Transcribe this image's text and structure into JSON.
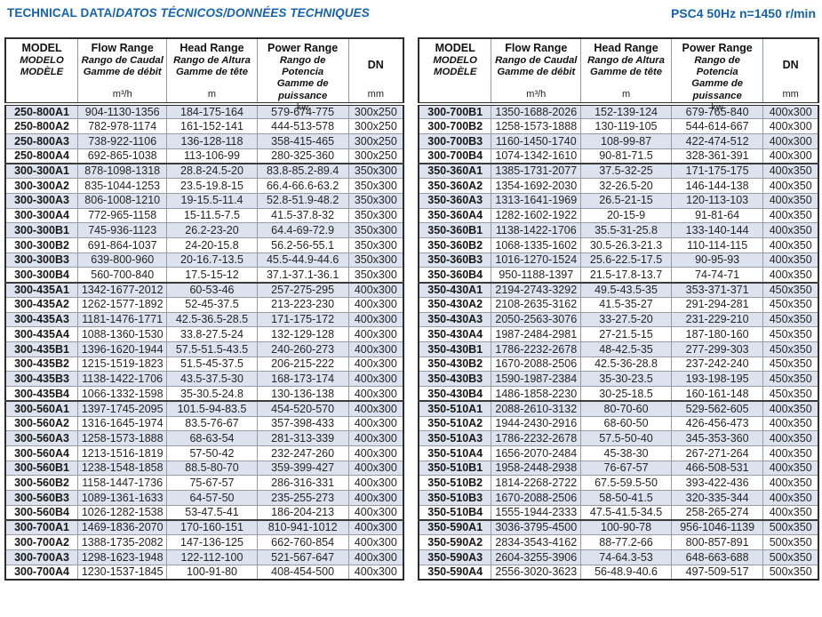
{
  "page": {
    "title": {
      "bold": "TECHNICAL DATA/",
      "italic": "DATOS TÉCNICOS/DONNÉES TECHNIQUES"
    },
    "spec": "PSC4 50Hz n=1450 r/min",
    "colors": {
      "accent": "#1463ac",
      "row_shade": "#dde3ee"
    }
  },
  "header": {
    "model_lines": [
      "MODEL",
      "MODELO",
      "MODÈLE"
    ],
    "flow_lines": [
      "Flow Range",
      "Rango de Caudal",
      "Gamme de débit"
    ],
    "head_lines": [
      "Head Range",
      "Rango de Altura",
      "Gamme de tête"
    ],
    "power_lines": [
      "Power Range",
      "Rango de Potencia",
      "Gamme de puissance"
    ],
    "dn_label": "DN",
    "units": {
      "flow": "m³/h",
      "head": "m",
      "power": "kw",
      "dn": "mm"
    }
  },
  "left_table": {
    "rows": [
      {
        "model": "250-800A1",
        "flow": "904-1130-1356",
        "head": "184-175-164",
        "power": "579-674-775",
        "dn": "300x250"
      },
      {
        "model": "250-800A2",
        "flow": "782-978-1174",
        "head": "161-152-141",
        "power": "444-513-578",
        "dn": "300x250"
      },
      {
        "model": "250-800A3",
        "flow": "738-922-1106",
        "head": "136-128-118",
        "power": "358-415-465",
        "dn": "300x250"
      },
      {
        "model": "250-800A4",
        "flow": "692-865-1038",
        "head": "113-106-99",
        "power": "280-325-360",
        "dn": "300x250"
      },
      {
        "model": "300-300A1",
        "flow": "878-1098-1318",
        "head": "28.8-24.5-20",
        "power": "83.8-85.2-89.4",
        "dn": "350x300"
      },
      {
        "model": "300-300A2",
        "flow": "835-1044-1253",
        "head": "23.5-19.8-15",
        "power": "66.4-66.6-63.2",
        "dn": "350x300"
      },
      {
        "model": "300-300A3",
        "flow": "806-1008-1210",
        "head": "19-15.5-11.4",
        "power": "52.8-51.9-48.2",
        "dn": "350x300"
      },
      {
        "model": "300-300A4",
        "flow": "772-965-1158",
        "head": "15-11.5-7.5",
        "power": "41.5-37.8-32",
        "dn": "350x300"
      },
      {
        "model": "300-300B1",
        "flow": "745-936-1123",
        "head": "26.2-23-20",
        "power": "64.4-69-72.9",
        "dn": "350x300"
      },
      {
        "model": "300-300B2",
        "flow": "691-864-1037",
        "head": "24-20-15.8",
        "power": "56.2-56-55.1",
        "dn": "350x300"
      },
      {
        "model": "300-300B3",
        "flow": "639-800-960",
        "head": "20-16.7-13.5",
        "power": "45.5-44.9-44.6",
        "dn": "350x300"
      },
      {
        "model": "300-300B4",
        "flow": "560-700-840",
        "head": "17.5-15-12",
        "power": "37.1-37.1-36.1",
        "dn": "350x300"
      },
      {
        "model": "300-435A1",
        "flow": "1342-1677-2012",
        "head": "60-53-46",
        "power": "257-275-295",
        "dn": "400x300"
      },
      {
        "model": "300-435A2",
        "flow": "1262-1577-1892",
        "head": "52-45-37.5",
        "power": "213-223-230",
        "dn": "400x300"
      },
      {
        "model": "300-435A3",
        "flow": "1181-1476-1771",
        "head": "42.5-36.5-28.5",
        "power": "171-175-172",
        "dn": "400x300"
      },
      {
        "model": "300-435A4",
        "flow": "1088-1360-1530",
        "head": "33.8-27.5-24",
        "power": "132-129-128",
        "dn": "400x300"
      },
      {
        "model": "300-435B1",
        "flow": "1396-1620-1944",
        "head": "57.5-51.5-43.5",
        "power": "240-260-273",
        "dn": "400x300"
      },
      {
        "model": "300-435B2",
        "flow": "1215-1519-1823",
        "head": "51.5-45-37.5",
        "power": "206-215-222",
        "dn": "400x300"
      },
      {
        "model": "300-435B3",
        "flow": "1138-1422-1706",
        "head": "43.5-37.5-30",
        "power": "168-173-174",
        "dn": "400x300"
      },
      {
        "model": "300-435B4",
        "flow": "1066-1332-1598",
        "head": "35-30.5-24.8",
        "power": "130-136-138",
        "dn": "400x300"
      },
      {
        "model": "300-560A1",
        "flow": "1397-1745-2095",
        "head": "101.5-94-83.5",
        "power": "454-520-570",
        "dn": "400x300"
      },
      {
        "model": "300-560A2",
        "flow": "1316-1645-1974",
        "head": "83.5-76-67",
        "power": "357-398-433",
        "dn": "400x300"
      },
      {
        "model": "300-560A3",
        "flow": "1258-1573-1888",
        "head": "68-63-54",
        "power": "281-313-339",
        "dn": "400x300"
      },
      {
        "model": "300-560A4",
        "flow": "1213-1516-1819",
        "head": "57-50-42",
        "power": "232-247-260",
        "dn": "400x300"
      },
      {
        "model": "300-560B1",
        "flow": "1238-1548-1858",
        "head": "88.5-80-70",
        "power": "359-399-427",
        "dn": "400x300"
      },
      {
        "model": "300-560B2",
        "flow": "1158-1447-1736",
        "head": "75-67-57",
        "power": "286-316-331",
        "dn": "400x300"
      },
      {
        "model": "300-560B3",
        "flow": "1089-1361-1633",
        "head": "64-57-50",
        "power": "235-255-273",
        "dn": "400x300"
      },
      {
        "model": "300-560B4",
        "flow": "1026-1282-1538",
        "head": "53-47.5-41",
        "power": "186-204-213",
        "dn": "400x300"
      },
      {
        "model": "300-700A1",
        "flow": "1469-1836-2070",
        "head": "170-160-151",
        "power": "810-941-1012",
        "dn": "400x300"
      },
      {
        "model": "300-700A2",
        "flow": "1388-1735-2082",
        "head": "147-136-125",
        "power": "662-760-854",
        "dn": "400x300"
      },
      {
        "model": "300-700A3",
        "flow": "1298-1623-1948",
        "head": "122-112-100",
        "power": "521-567-647",
        "dn": "400x300"
      },
      {
        "model": "300-700A4",
        "flow": "1230-1537-1845",
        "head": "100-91-80",
        "power": "408-454-500",
        "dn": "400x300"
      }
    ]
  },
  "right_table": {
    "rows": [
      {
        "model": "300-700B1",
        "flow": "1350-1688-2026",
        "head": "152-139-124",
        "power": "679-765-840",
        "dn": "400x300"
      },
      {
        "model": "300-700B2",
        "flow": "1258-1573-1888",
        "head": "130-119-105",
        "power": "544-614-667",
        "dn": "400x300"
      },
      {
        "model": "300-700B3",
        "flow": "1160-1450-1740",
        "head": "108-99-87",
        "power": "422-474-512",
        "dn": "400x300"
      },
      {
        "model": "300-700B4",
        "flow": "1074-1342-1610",
        "head": "90-81-71.5",
        "power": "328-361-391",
        "dn": "400x300"
      },
      {
        "model": "350-360A1",
        "flow": "1385-1731-2077",
        "head": "37.5-32-25",
        "power": "171-175-175",
        "dn": "400x350"
      },
      {
        "model": "350-360A2",
        "flow": "1354-1692-2030",
        "head": "32-26.5-20",
        "power": "146-144-138",
        "dn": "400x350"
      },
      {
        "model": "350-360A3",
        "flow": "1313-1641-1969",
        "head": "26.5-21-15",
        "power": "120-113-103",
        "dn": "400x350"
      },
      {
        "model": "350-360A4",
        "flow": "1282-1602-1922",
        "head": "20-15-9",
        "power": "91-81-64",
        "dn": "400x350"
      },
      {
        "model": "350-360B1",
        "flow": "1138-1422-1706",
        "head": "35.5-31-25.8",
        "power": "133-140-144",
        "dn": "400x350"
      },
      {
        "model": "350-360B2",
        "flow": "1068-1335-1602",
        "head": "30.5-26.3-21.3",
        "power": "110-114-115",
        "dn": "400x350"
      },
      {
        "model": "350-360B3",
        "flow": "1016-1270-1524",
        "head": "25.6-22.5-17.5",
        "power": "90-95-93",
        "dn": "400x350"
      },
      {
        "model": "350-360B4",
        "flow": "950-1188-1397",
        "head": "21.5-17.8-13.7",
        "power": "74-74-71",
        "dn": "400x350"
      },
      {
        "model": "350-430A1",
        "flow": "2194-2743-3292",
        "head": "49.5-43.5-35",
        "power": "353-371-371",
        "dn": "450x350"
      },
      {
        "model": "350-430A2",
        "flow": "2108-2635-3162",
        "head": "41.5-35-27",
        "power": "291-294-281",
        "dn": "450x350"
      },
      {
        "model": "350-430A3",
        "flow": "2050-2563-3076",
        "head": "33-27.5-20",
        "power": "231-229-210",
        "dn": "450x350"
      },
      {
        "model": "350-430A4",
        "flow": "1987-2484-2981",
        "head": "27-21.5-15",
        "power": "187-180-160",
        "dn": "450x350"
      },
      {
        "model": "350-430B1",
        "flow": "1786-2232-2678",
        "head": "48-42.5-35",
        "power": "277-299-303",
        "dn": "450x350"
      },
      {
        "model": "350-430B2",
        "flow": "1670-2088-2506",
        "head": "42.5-36-28.8",
        "power": "237-242-240",
        "dn": "450x350"
      },
      {
        "model": "350-430B3",
        "flow": "1590-1987-2384",
        "head": "35-30-23.5",
        "power": "193-198-195",
        "dn": "450x350"
      },
      {
        "model": "350-430B4",
        "flow": "1486-1858-2230",
        "head": "30-25-18.5",
        "power": "160-161-148",
        "dn": "450x350"
      },
      {
        "model": "350-510A1",
        "flow": "2088-2610-3132",
        "head": "80-70-60",
        "power": "529-562-605",
        "dn": "400x350"
      },
      {
        "model": "350-510A2",
        "flow": "1944-2430-2916",
        "head": "68-60-50",
        "power": "426-456-473",
        "dn": "400x350"
      },
      {
        "model": "350-510A3",
        "flow": "1786-2232-2678",
        "head": "57.5-50-40",
        "power": "345-353-360",
        "dn": "400x350"
      },
      {
        "model": "350-510A4",
        "flow": "1656-2070-2484",
        "head": "45-38-30",
        "power": "267-271-264",
        "dn": "400x350"
      },
      {
        "model": "350-510B1",
        "flow": "1958-2448-2938",
        "head": "76-67-57",
        "power": "466-508-531",
        "dn": "400x350"
      },
      {
        "model": "350-510B2",
        "flow": "1814-2268-2722",
        "head": "67.5-59.5-50",
        "power": "393-422-436",
        "dn": "400x350"
      },
      {
        "model": "350-510B3",
        "flow": "1670-2088-2506",
        "head": "58-50-41.5",
        "power": "320-335-344",
        "dn": "400x350"
      },
      {
        "model": "350-510B4",
        "flow": "1555-1944-2333",
        "head": "47.5-41.5-34.5",
        "power": "258-265-274",
        "dn": "400x350"
      },
      {
        "model": "350-590A1",
        "flow": "3036-3795-4500",
        "head": "100-90-78",
        "power": "956-1046-1139",
        "dn": "500x350"
      },
      {
        "model": "350-590A2",
        "flow": "2834-3543-4162",
        "head": "88-77.2-66",
        "power": "800-857-891",
        "dn": "500x350"
      },
      {
        "model": "350-590A3",
        "flow": "2604-3255-3906",
        "head": "74-64.3-53",
        "power": "648-663-688",
        "dn": "500x350"
      },
      {
        "model": "350-590A4",
        "flow": "2556-3020-3623",
        "head": "56-48.9-40.6",
        "power": "497-509-517",
        "dn": "500x350"
      }
    ]
  }
}
